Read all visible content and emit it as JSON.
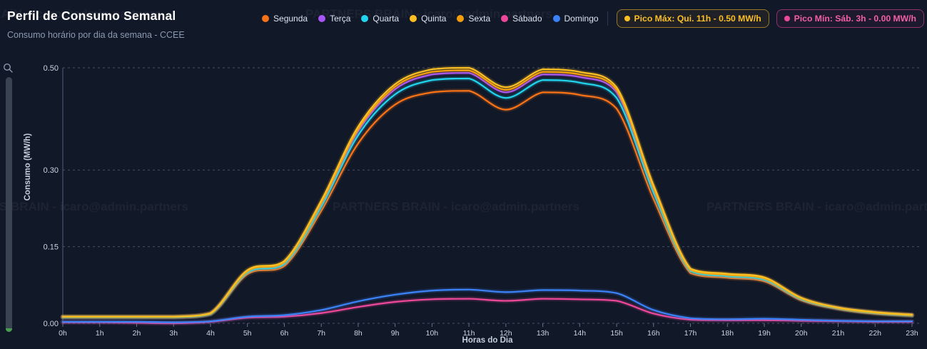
{
  "header": {
    "title": "Perfil de Consumo Semanal",
    "subtitle": "Consumo horário por dia da semana - CCEE"
  },
  "badges": {
    "max": {
      "label": "Pico Máx: Qui. 11h - 0.50 MW/h",
      "color": "#fbbf24"
    },
    "min": {
      "label": "Pico Mín: Sáb. 3h - 0.00 MW/h",
      "color": "#ec4899"
    }
  },
  "watermark": {
    "text": "PARTNERS BRAIN - icaro@admin.partners"
  },
  "toolbar": {
    "zoom_icon": "magnifier",
    "slider": "vertical-zoom-slider"
  },
  "chart_data": {
    "type": "line",
    "title": "Perfil de Consumo Semanal",
    "subtitle": "Consumo horário por dia da semana - CCEE",
    "xlabel": "Horas do Dia",
    "ylabel": "Consumo (MW/h)",
    "x": [
      "0h",
      "1h",
      "2h",
      "3h",
      "4h",
      "5h",
      "6h",
      "7h",
      "8h",
      "9h",
      "10h",
      "11h",
      "12h",
      "13h",
      "14h",
      "15h",
      "16h",
      "17h",
      "18h",
      "19h",
      "20h",
      "21h",
      "22h",
      "23h"
    ],
    "ylim": [
      0,
      0.5
    ],
    "yticks": [
      0.5,
      0.3,
      0.15,
      0
    ],
    "ytick_labels": [
      "0.50",
      "0.30",
      "0.15",
      "0.00"
    ],
    "grid": "dashed-horizontal",
    "legend_position": "top-right",
    "peak_max": {
      "series": "Quinta",
      "hour": "11h",
      "value": 0.5
    },
    "peak_min": {
      "series": "Sábado",
      "hour": "3h",
      "value": 0.0
    },
    "series": [
      {
        "name": "Segunda",
        "color": "#F97316",
        "values": [
          0.012,
          0.012,
          0.012,
          0.012,
          0.018,
          0.096,
          0.112,
          0.22,
          0.352,
          0.428,
          0.452,
          0.455,
          0.418,
          0.452,
          0.447,
          0.42,
          0.243,
          0.098,
          0.089,
          0.082,
          0.045,
          0.028,
          0.019,
          0.015
        ]
      },
      {
        "name": "Terça",
        "color": "#A855F7",
        "values": [
          0.012,
          0.012,
          0.012,
          0.012,
          0.019,
          0.101,
          0.118,
          0.233,
          0.376,
          0.458,
          0.487,
          0.49,
          0.452,
          0.487,
          0.482,
          0.452,
          0.262,
          0.104,
          0.094,
          0.087,
          0.048,
          0.03,
          0.021,
          0.016
        ]
      },
      {
        "name": "Quarta",
        "color": "#22D3EE",
        "values": [
          0.012,
          0.012,
          0.012,
          0.012,
          0.018,
          0.099,
          0.116,
          0.228,
          0.368,
          0.448,
          0.476,
          0.479,
          0.441,
          0.476,
          0.471,
          0.441,
          0.255,
          0.102,
          0.092,
          0.085,
          0.047,
          0.029,
          0.02,
          0.015
        ]
      },
      {
        "name": "Sexta",
        "color": "#F59E0B",
        "values": [
          0.013,
          0.013,
          0.013,
          0.013,
          0.019,
          0.102,
          0.12,
          0.236,
          0.38,
          0.463,
          0.492,
          0.495,
          0.457,
          0.492,
          0.487,
          0.457,
          0.266,
          0.105,
          0.095,
          0.088,
          0.049,
          0.03,
          0.021,
          0.016
        ]
      },
      {
        "name": "Quinta",
        "color": "#FBBF24",
        "values": [
          0.013,
          0.013,
          0.013,
          0.013,
          0.02,
          0.104,
          0.122,
          0.24,
          0.385,
          0.468,
          0.497,
          0.5,
          0.462,
          0.497,
          0.492,
          0.462,
          0.27,
          0.107,
          0.097,
          0.09,
          0.05,
          0.031,
          0.022,
          0.017
        ]
      },
      {
        "name": "Sábado",
        "color": "#EC4899",
        "values": [
          0.002,
          0.002,
          0.001,
          0.0,
          0.003,
          0.011,
          0.013,
          0.02,
          0.032,
          0.042,
          0.047,
          0.048,
          0.044,
          0.048,
          0.047,
          0.044,
          0.019,
          0.007,
          0.006,
          0.006,
          0.005,
          0.004,
          0.003,
          0.003
        ]
      },
      {
        "name": "Domingo",
        "color": "#3B82F6",
        "values": [
          0.003,
          0.003,
          0.003,
          0.002,
          0.004,
          0.013,
          0.016,
          0.026,
          0.043,
          0.056,
          0.064,
          0.066,
          0.061,
          0.065,
          0.064,
          0.059,
          0.026,
          0.01,
          0.008,
          0.009,
          0.007,
          0.005,
          0.004,
          0.004
        ]
      }
    ],
    "legend_order": [
      "Segunda",
      "Terça",
      "Quarta",
      "Quinta",
      "Sexta",
      "Sábado",
      "Domingo"
    ]
  }
}
